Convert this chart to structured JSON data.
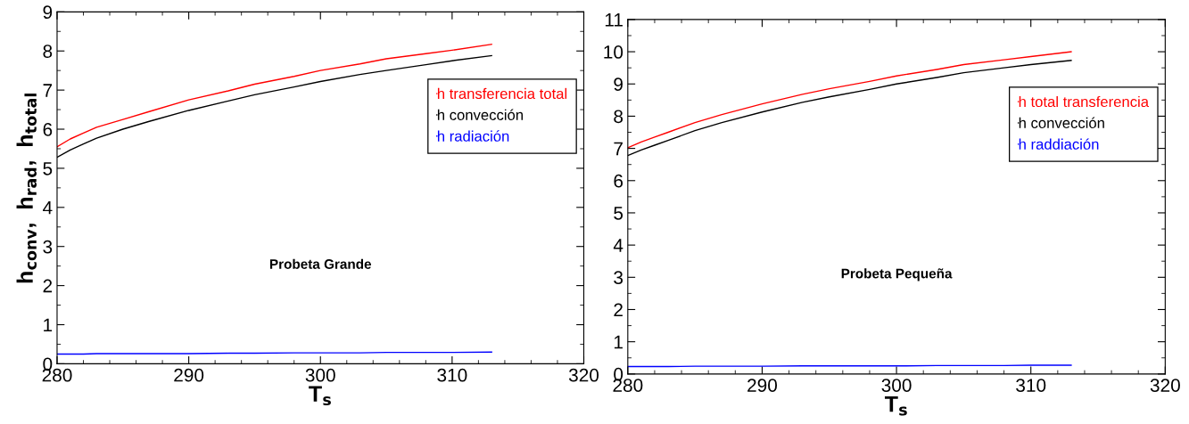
{
  "chart_data": [
    {
      "type": "line",
      "xlabel": "T$_{s}$",
      "ylabel": "h$_{conv}$,  h$_{rad}$,  h$_{total}$",
      "annotations": [
        "Probeta Grande"
      ],
      "x": [
        280,
        281,
        282,
        283,
        285,
        287,
        290,
        293,
        295,
        298,
        300,
        303,
        305,
        308,
        310,
        313
      ],
      "series": [
        {
          "name": "h transferencia total",
          "color": "#ff0000",
          "values": [
            5.55,
            5.75,
            5.9,
            6.05,
            6.25,
            6.45,
            6.75,
            6.98,
            7.15,
            7.35,
            7.5,
            7.67,
            7.8,
            7.93,
            8.02,
            8.17
          ]
        },
        {
          "name": "h convección",
          "color": "#000000",
          "values": [
            5.28,
            5.47,
            5.62,
            5.77,
            6.0,
            6.2,
            6.48,
            6.72,
            6.88,
            7.08,
            7.22,
            7.4,
            7.5,
            7.65,
            7.75,
            7.88
          ]
        },
        {
          "name": "h radiación",
          "color": "#0000ff",
          "values": [
            0.25,
            0.25,
            0.25,
            0.26,
            0.26,
            0.26,
            0.26,
            0.27,
            0.27,
            0.28,
            0.28,
            0.28,
            0.29,
            0.29,
            0.29,
            0.3
          ]
        }
      ],
      "xlim": [
        280,
        320
      ],
      "xticks": [
        280,
        290,
        300,
        310,
        320
      ],
      "ylim": [
        0,
        9
      ],
      "yticks": [
        0,
        1,
        2,
        3,
        4,
        5,
        6,
        7,
        8,
        9
      ],
      "legend": "top right",
      "grid": false
    },
    {
      "type": "line",
      "xlabel": "T$_{s}$",
      "annotations": [
        "Probeta Pequeña"
      ],
      "x": [
        280,
        281,
        282,
        283,
        285,
        287,
        290,
        293,
        295,
        298,
        300,
        303,
        305,
        308,
        310,
        313
      ],
      "series": [
        {
          "name": "h total transferencia",
          "color": "#ff0000",
          "values": [
            7.02,
            7.2,
            7.35,
            7.5,
            7.8,
            8.05,
            8.38,
            8.68,
            8.85,
            9.08,
            9.25,
            9.45,
            9.6,
            9.75,
            9.85,
            10.0
          ]
        },
        {
          "name": "h convección",
          "color": "#000000",
          "values": [
            6.78,
            6.95,
            7.1,
            7.25,
            7.55,
            7.8,
            8.13,
            8.43,
            8.6,
            8.83,
            9.0,
            9.2,
            9.35,
            9.5,
            9.6,
            9.73
          ]
        },
        {
          "name": "h raddiación",
          "color": "#0000ff",
          "values": [
            0.23,
            0.23,
            0.23,
            0.23,
            0.24,
            0.24,
            0.24,
            0.25,
            0.25,
            0.25,
            0.25,
            0.26,
            0.26,
            0.26,
            0.27,
            0.27
          ]
        }
      ],
      "xlim": [
        280,
        320
      ],
      "xticks": [
        280,
        290,
        300,
        310,
        320
      ],
      "ylim": [
        0,
        11
      ],
      "yticks": [
        0,
        1,
        2,
        3,
        4,
        5,
        6,
        7,
        8,
        9,
        10,
        11
      ],
      "legend": "top right",
      "grid": false
    }
  ]
}
